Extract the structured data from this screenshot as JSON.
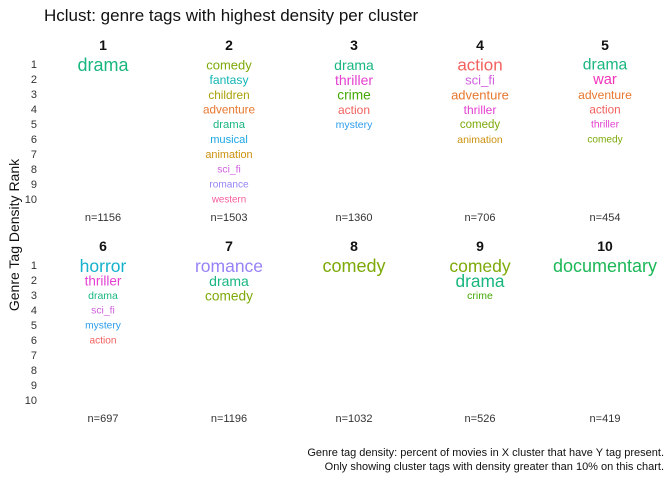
{
  "chart_data": {
    "type": "table",
    "title": "Hclust: genre tags with highest density per cluster",
    "ylabel": "Genre Tag Density Rank",
    "caption_line1": "Genre tag density: percent of movies in X cluster that have Y tag present.",
    "caption_line2": "Only showing cluster tags with density greater than 10% on this chart.",
    "rank_labels": [
      "1",
      "2",
      "3",
      "4",
      "5",
      "6",
      "7",
      "8",
      "9",
      "10"
    ],
    "colors": {
      "drama": "#19B77E",
      "comedy": "#7DAA09",
      "fantasy": "#11B6B4",
      "children": "#A9A10A",
      "adventure": "#E8772E",
      "musical": "#1AA6E3",
      "animation": "#CB900D",
      "sci_fi": "#D05FDF",
      "romance": "#9782F6",
      "western": "#F55D9D",
      "thriller": "#E43FD2",
      "crime": "#43A906",
      "action": "#F2625F",
      "mystery": "#2B9CEB",
      "war": "#F233BA",
      "horror": "#15B1CD",
      "documentary": "#1CB858"
    },
    "clusters": [
      {
        "label": "1",
        "n_label": "n=1156",
        "tags": [
          {
            "tag": "drama",
            "density": 0.95
          }
        ]
      },
      {
        "label": "2",
        "n_label": "n=1503",
        "tags": [
          {
            "tag": "comedy",
            "density": 0.45
          },
          {
            "tag": "fantasy",
            "density": 0.36
          },
          {
            "tag": "children",
            "density": 0.33
          },
          {
            "tag": "adventure",
            "density": 0.32
          },
          {
            "tag": "drama",
            "density": 0.28
          },
          {
            "tag": "musical",
            "density": 0.26
          },
          {
            "tag": "animation",
            "density": 0.24
          },
          {
            "tag": "sci_fi",
            "density": 0.18
          },
          {
            "tag": "romance",
            "density": 0.16
          },
          {
            "tag": "western",
            "density": 0.13
          }
        ]
      },
      {
        "label": "3",
        "n_label": "n=1360",
        "tags": [
          {
            "tag": "drama",
            "density": 0.55
          },
          {
            "tag": "thriller",
            "density": 0.55
          },
          {
            "tag": "crime",
            "density": 0.52
          },
          {
            "tag": "action",
            "density": 0.35
          },
          {
            "tag": "mystery",
            "density": 0.2
          }
        ]
      },
      {
        "label": "4",
        "n_label": "n=706",
        "tags": [
          {
            "tag": "action",
            "density": 0.85
          },
          {
            "tag": "sci_fi",
            "density": 0.46
          },
          {
            "tag": "adventure",
            "density": 0.45
          },
          {
            "tag": "thriller",
            "density": 0.35
          },
          {
            "tag": "comedy",
            "density": 0.3
          },
          {
            "tag": "animation",
            "density": 0.2
          }
        ]
      },
      {
        "label": "5",
        "n_label": "n=454",
        "tags": [
          {
            "tag": "drama",
            "density": 0.72
          },
          {
            "tag": "war",
            "density": 0.62
          },
          {
            "tag": "adventure",
            "density": 0.36
          },
          {
            "tag": "action",
            "density": 0.32
          },
          {
            "tag": "thriller",
            "density": 0.18
          },
          {
            "tag": "comedy",
            "density": 0.16
          }
        ]
      },
      {
        "label": "6",
        "n_label": "n=697",
        "tags": [
          {
            "tag": "horror",
            "density": 0.9
          },
          {
            "tag": "thriller",
            "density": 0.5
          },
          {
            "tag": "drama",
            "density": 0.2
          },
          {
            "tag": "sci_fi",
            "density": 0.19
          },
          {
            "tag": "mystery",
            "density": 0.17
          },
          {
            "tag": "action",
            "density": 0.16
          }
        ]
      },
      {
        "label": "7",
        "n_label": "n=1196",
        "tags": [
          {
            "tag": "romance",
            "density": 0.9
          },
          {
            "tag": "drama",
            "density": 0.55
          },
          {
            "tag": "comedy",
            "density": 0.52
          }
        ]
      },
      {
        "label": "8",
        "n_label": "n=1032",
        "tags": [
          {
            "tag": "comedy",
            "density": 0.95
          }
        ]
      },
      {
        "label": "9",
        "n_label": "n=526",
        "tags": [
          {
            "tag": "comedy",
            "density": 0.9
          },
          {
            "tag": "drama",
            "density": 0.88
          },
          {
            "tag": "crime",
            "density": 0.2
          }
        ]
      },
      {
        "label": "10",
        "n_label": "n=419",
        "tags": [
          {
            "tag": "documentary",
            "density": 0.95
          }
        ]
      }
    ]
  }
}
